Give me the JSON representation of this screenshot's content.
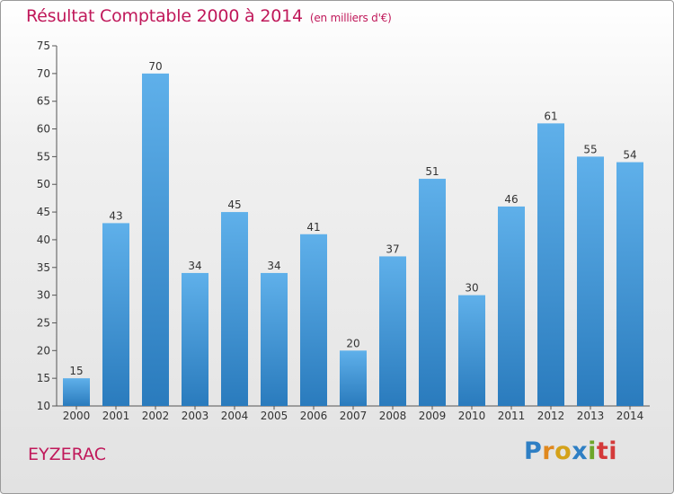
{
  "chart_data": {
    "type": "bar",
    "title": "Résultat Comptable 2000 à 2014",
    "subtitle": "(en milliers d'€)",
    "categories": [
      "2000",
      "2001",
      "2002",
      "2003",
      "2004",
      "2005",
      "2006",
      "2007",
      "2008",
      "2009",
      "2010",
      "2011",
      "2012",
      "2013",
      "2014"
    ],
    "values": [
      15,
      43,
      70,
      34,
      45,
      34,
      41,
      20,
      37,
      51,
      30,
      46,
      61,
      55,
      54
    ],
    "ylim": [
      10,
      75
    ],
    "yticks": [
      10,
      15,
      20,
      25,
      30,
      35,
      40,
      45,
      50,
      55,
      60,
      65,
      70,
      75
    ],
    "xlabel": "",
    "ylabel": "",
    "grid": false,
    "bar_color_top": "#5dade8",
    "bar_color_bottom": "#2a7bbd"
  },
  "commune": "EYZERAC",
  "logo": {
    "text": "Proxiti",
    "letters": [
      "P",
      "r",
      "o",
      "x",
      "i",
      "ti"
    ]
  }
}
